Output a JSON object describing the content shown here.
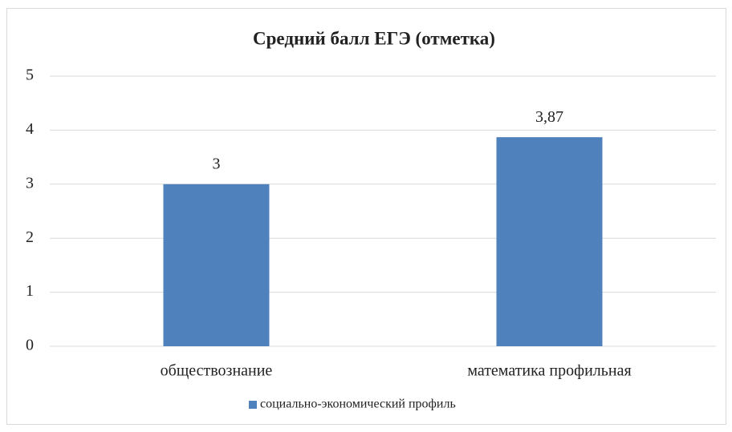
{
  "chart_data": {
    "type": "bar",
    "title": "Средний балл ЕГЭ (отметка)",
    "categories": [
      "обществознание",
      "математика профильная"
    ],
    "series": [
      {
        "name": "социально-экономический профиль",
        "color": "#4f81bd",
        "values": [
          3,
          3.87
        ],
        "value_labels": [
          "3",
          "3,87"
        ]
      }
    ],
    "ylim": [
      0,
      5
    ],
    "yticks": [
      0,
      1,
      2,
      3,
      4,
      5
    ],
    "grid": true,
    "legend": "bottom"
  }
}
